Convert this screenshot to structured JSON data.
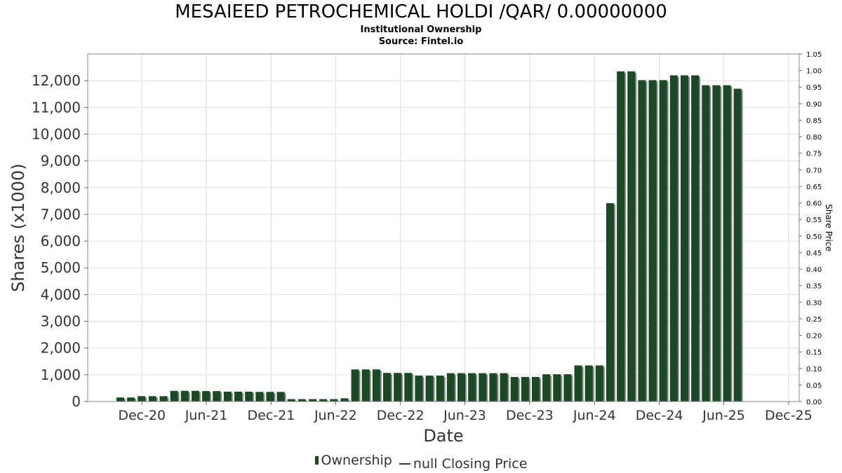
{
  "chart_data": {
    "type": "bar",
    "title": "MESAIEED PETROCHEMICAL HOLDI /QAR/ 0.00000000",
    "subtitle_1": "Institutional Ownership",
    "subtitle_2": "Source: Fintel.io",
    "xlabel": "Date",
    "ylabel": "Shares (x1000)",
    "y2label": "Share Price",
    "ylim": [
      0,
      13000
    ],
    "y2lim": [
      0,
      1.05
    ],
    "x_start": "2020-07-01",
    "x_end": "2025-12-31",
    "yticks": [
      0,
      1000,
      2000,
      3000,
      4000,
      5000,
      6000,
      7000,
      8000,
      9000,
      10000,
      11000,
      12000
    ],
    "ytick_labels": [
      "0",
      "1,000",
      "2,000",
      "3,000",
      "4,000",
      "5,000",
      "6,000",
      "7,000",
      "8,000",
      "9,000",
      "10,000",
      "11,000",
      "12,000"
    ],
    "y2ticks": [
      "0.00",
      "0.05",
      "0.10",
      "0.15",
      "0.20",
      "0.25",
      "0.30",
      "0.35",
      "0.40",
      "0.45",
      "0.50",
      "0.55",
      "0.60",
      "0.65",
      "0.70",
      "0.75",
      "0.80",
      "0.85",
      "0.90",
      "0.95",
      "1.00",
      "1.05"
    ],
    "xticks": [
      {
        "label": "Dec-20",
        "date": "2020-12-01"
      },
      {
        "label": "Jun-21",
        "date": "2021-06-01"
      },
      {
        "label": "Dec-21",
        "date": "2021-12-01"
      },
      {
        "label": "Jun-22",
        "date": "2022-06-01"
      },
      {
        "label": "Dec-22",
        "date": "2022-12-01"
      },
      {
        "label": "Jun-23",
        "date": "2023-06-01"
      },
      {
        "label": "Dec-23",
        "date": "2023-12-01"
      },
      {
        "label": "Jun-24",
        "date": "2024-06-01"
      },
      {
        "label": "Dec-24",
        "date": "2024-12-01"
      },
      {
        "label": "Jun-25",
        "date": "2025-06-01"
      },
      {
        "label": "Dec-25",
        "date": "2025-12-01"
      }
    ],
    "grid": true,
    "legend_placement": "bottom-center",
    "series": [
      {
        "name": "Ownership",
        "color": "#1a4a24",
        "points": [
          [
            "2020-10-01",
            150
          ],
          [
            "2020-10-31",
            150
          ],
          [
            "2020-11-30",
            200
          ],
          [
            "2020-12-31",
            200
          ],
          [
            "2021-01-31",
            200
          ],
          [
            "2021-03-02",
            400
          ],
          [
            "2021-04-01",
            400
          ],
          [
            "2021-05-01",
            400
          ],
          [
            "2021-05-31",
            390
          ],
          [
            "2021-06-30",
            390
          ],
          [
            "2021-07-31",
            370
          ],
          [
            "2021-08-30",
            370
          ],
          [
            "2021-09-29",
            370
          ],
          [
            "2021-10-29",
            360
          ],
          [
            "2021-11-28",
            360
          ],
          [
            "2021-12-28",
            360
          ],
          [
            "2022-01-27",
            90
          ],
          [
            "2022-02-26",
            90
          ],
          [
            "2022-03-28",
            90
          ],
          [
            "2022-04-27",
            90
          ],
          [
            "2022-05-27",
            90
          ],
          [
            "2022-06-26",
            120
          ],
          [
            "2022-07-26",
            1200
          ],
          [
            "2022-08-25",
            1200
          ],
          [
            "2022-09-24",
            1200
          ],
          [
            "2022-10-24",
            1070
          ],
          [
            "2022-11-23",
            1070
          ],
          [
            "2022-12-23",
            1070
          ],
          [
            "2023-01-22",
            970
          ],
          [
            "2023-02-21",
            970
          ],
          [
            "2023-03-23",
            970
          ],
          [
            "2023-04-22",
            1060
          ],
          [
            "2023-05-22",
            1060
          ],
          [
            "2023-06-21",
            1060
          ],
          [
            "2023-07-21",
            1060
          ],
          [
            "2023-08-20",
            1060
          ],
          [
            "2023-09-19",
            1060
          ],
          [
            "2023-10-19",
            920
          ],
          [
            "2023-11-18",
            920
          ],
          [
            "2023-12-18",
            920
          ],
          [
            "2024-01-17",
            1020
          ],
          [
            "2024-02-16",
            1020
          ],
          [
            "2024-03-17",
            1020
          ],
          [
            "2024-04-16",
            1350
          ],
          [
            "2024-05-16",
            1350
          ],
          [
            "2024-06-15",
            1350
          ],
          [
            "2024-07-15",
            7420
          ],
          [
            "2024-08-14",
            12350
          ],
          [
            "2024-09-13",
            12350
          ],
          [
            "2024-10-13",
            12020
          ],
          [
            "2024-11-12",
            12020
          ],
          [
            "2024-12-12",
            12020
          ],
          [
            "2025-01-11",
            12200
          ],
          [
            "2025-02-10",
            12200
          ],
          [
            "2025-03-12",
            12200
          ],
          [
            "2025-04-11",
            11830
          ],
          [
            "2025-05-11",
            11830
          ],
          [
            "2025-06-10",
            11830
          ],
          [
            "2025-07-10",
            11700
          ]
        ]
      },
      {
        "name": "null Closing Price",
        "color": "#333333",
        "points": []
      }
    ]
  },
  "legend": {
    "ownership_label": "Ownership",
    "price_label": "null Closing Price"
  }
}
